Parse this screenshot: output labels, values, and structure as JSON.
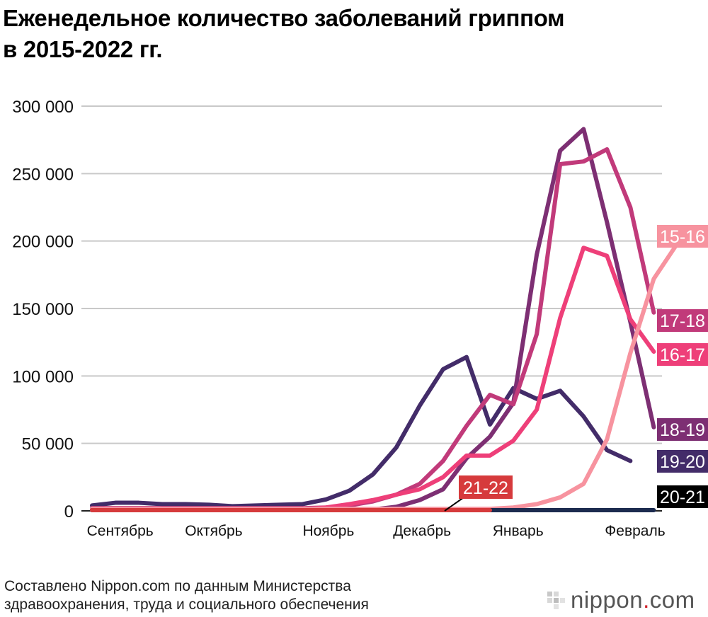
{
  "title_lines": [
    "Еженедельное количество заболеваний гриппом",
    "в 2015-2022 гг."
  ],
  "source_lines": [
    "Составлено Nippon.com по данным Министерства",
    "здравоохранения, труда и социального обеспечения"
  ],
  "logo": {
    "name": "nippon",
    "dot": ".",
    "tld": "com"
  },
  "chart_data": {
    "type": "line",
    "title": "Еженедельное количество заболеваний гриппом в 2015-2022 гг.",
    "xlabel": "",
    "ylabel": "",
    "ylim": [
      0,
      300000
    ],
    "yticks": [
      0,
      50000,
      100000,
      150000,
      200000,
      250000,
      300000
    ],
    "ytick_labels": [
      "0",
      "50 000",
      "100 000",
      "150 000",
      "200 000",
      "250 000",
      "300 000"
    ],
    "xlim": [
      0,
      24.35
    ],
    "xticks": [
      {
        "label": "Сентябрь",
        "week": 1.2
      },
      {
        "label": "Октябрь",
        "week": 5.2
      },
      {
        "label": "Ноябрь",
        "week": 10.1
      },
      {
        "label": "Декабрь",
        "week": 14.1
      },
      {
        "label": "Январь",
        "week": 18.2
      },
      {
        "label": "Февраль",
        "week": 23.2
      }
    ],
    "series": [
      {
        "name": "15-16",
        "color": "#f7939f",
        "values": [
          1500,
          1500,
          1500,
          1500,
          1500,
          1500,
          1500,
          1500,
          1500,
          1500,
          1500,
          1500,
          1500,
          1500,
          1500,
          1500,
          1500,
          1500,
          2500,
          5000,
          10000,
          20000,
          53000,
          117000,
          172000,
          198000
        ]
      },
      {
        "name": "16-17",
        "color": "#ee3f79",
        "values": [
          1000,
          1000,
          1000,
          1000,
          1000,
          1000,
          1000,
          1000,
          1000,
          1000,
          2500,
          5000,
          8000,
          12000,
          16000,
          25000,
          41000,
          41000,
          52000,
          75000,
          143000,
          195000,
          189000,
          142000,
          118000
        ]
      },
      {
        "name": "17-18",
        "color": "#c13a7a",
        "values": [
          2000,
          2000,
          2000,
          2000,
          2000,
          2000,
          2000,
          2000,
          2000,
          2000,
          2500,
          4000,
          7000,
          12000,
          20000,
          37000,
          63000,
          86000,
          79000,
          131000,
          257000,
          259000,
          268000,
          225000,
          147000
        ]
      },
      {
        "name": "18-19",
        "color": "#7d2f73",
        "values": [
          1000,
          1000,
          1000,
          1000,
          1000,
          1000,
          1000,
          1000,
          1000,
          1000,
          1000,
          1000,
          1000,
          3000,
          8000,
          16000,
          39000,
          55000,
          80000,
          190000,
          267000,
          283000,
          214000,
          140000,
          62000
        ]
      },
      {
        "name": "19-20",
        "color": "#432c69",
        "values": [
          4000,
          6000,
          6000,
          5000,
          5000,
          4500,
          3500,
          4000,
          4500,
          5000,
          8500,
          15000,
          27000,
          47000,
          78000,
          105000,
          114000,
          64000,
          91000,
          83000,
          89000,
          70000,
          45000,
          37000
        ]
      },
      {
        "name": "20-21",
        "color": "#1c2b4f",
        "values": [
          500,
          500,
          500,
          500,
          500,
          500,
          500,
          500,
          500,
          500,
          500,
          500,
          500,
          500,
          500,
          500,
          500,
          500,
          500,
          500,
          500,
          500,
          500,
          500,
          500
        ]
      },
      {
        "name": "21-22",
        "color": "#d63a3c",
        "values": [
          500,
          500,
          500,
          500,
          500,
          500,
          500,
          500,
          500,
          500,
          500,
          500,
          500,
          500,
          500,
          500,
          500,
          500
        ]
      }
    ]
  }
}
